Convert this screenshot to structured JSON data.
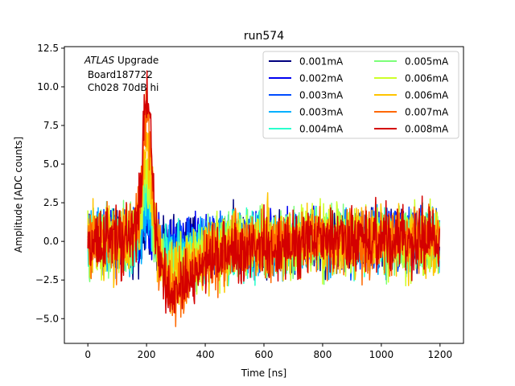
{
  "chart_data": {
    "type": "line",
    "title": "run574",
    "xlabel": "Time [ns]",
    "ylabel": "Amplitude [ADC counts]",
    "xlim": [
      -80,
      1280
    ],
    "ylim": [
      -6.6,
      12.6
    ],
    "xticks": [
      0,
      200,
      400,
      600,
      800,
      1000,
      1200
    ],
    "yticks": [
      -5.0,
      -2.5,
      0.0,
      2.5,
      5.0,
      7.5,
      10.0,
      12.5
    ],
    "xtick_labels": [
      "0",
      "200",
      "400",
      "600",
      "800",
      "1000",
      "1200"
    ],
    "ytick_labels": [
      "−5.0",
      "−2.5",
      "0.0",
      "2.5",
      "5.0",
      "7.5",
      "10.0",
      "12.5"
    ],
    "grid": false,
    "legend_position": "top-right",
    "legend_columns": 2,
    "annotation": {
      "lines": [
        {
          "italic": "ATLAS",
          "text": " Upgrade"
        },
        {
          "italic": "",
          "text": " Board187722"
        },
        {
          "italic": "",
          "text": " Ch028 70dB hi"
        }
      ]
    },
    "waveform_shape": {
      "x_range": [
        0,
        1200
      ],
      "points": [
        [
          0,
          0.0
        ],
        [
          150,
          0.0
        ],
        [
          175,
          2.0
        ],
        [
          190,
          7.0
        ],
        [
          200,
          9.5
        ],
        [
          212,
          7.0
        ],
        [
          225,
          2.0
        ],
        [
          240,
          -1.0
        ],
        [
          270,
          -3.0
        ],
        [
          300,
          -3.5
        ],
        [
          340,
          -2.5
        ],
        [
          400,
          -1.3
        ],
        [
          500,
          -0.5
        ],
        [
          600,
          -0.2
        ],
        [
          800,
          0.0
        ],
        [
          1200,
          0.0
        ]
      ]
    },
    "series": [
      {
        "name": "0.001mA",
        "color": "#00007f",
        "peak_scale": 0.05,
        "noise": 1.1
      },
      {
        "name": "0.002mA",
        "color": "#0000f1",
        "peak_scale": 0.1,
        "noise": 1.1
      },
      {
        "name": "0.003mA",
        "color": "#004cff",
        "peak_scale": 0.15,
        "noise": 1.1
      },
      {
        "name": "0.003mA",
        "color": "#00b0ff",
        "peak_scale": 0.2,
        "noise": 1.1
      },
      {
        "name": "0.004mA",
        "color": "#29ffcd",
        "peak_scale": 0.4,
        "noise": 1.2
      },
      {
        "name": "0.005mA",
        "color": "#7cff79",
        "peak_scale": 0.45,
        "noise": 1.2
      },
      {
        "name": "0.006mA",
        "color": "#cdff29",
        "peak_scale": 0.55,
        "noise": 1.3
      },
      {
        "name": "0.006mA",
        "color": "#ffc400",
        "peak_scale": 0.7,
        "noise": 1.3
      },
      {
        "name": "0.007mA",
        "color": "#ff6800",
        "peak_scale": 0.9,
        "noise": 1.25
      },
      {
        "name": "0.008mA",
        "color": "#d40000",
        "peak_scale": 1.08,
        "noise": 1.2
      }
    ]
  }
}
